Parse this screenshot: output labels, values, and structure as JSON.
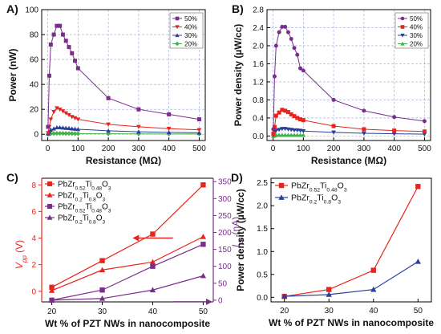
{
  "colors": {
    "purple": "#7a2e8c",
    "red": "#e8251c",
    "blue": "#2b3f9b",
    "green": "#40b24a",
    "grid": "#9aa5d8"
  },
  "chart_data": [
    {
      "id": "A",
      "panel_label": "A)",
      "type": "line",
      "xlabel": "Resistance (MΩ)",
      "ylabel": "Power (nW)",
      "xlim": [
        -20,
        520
      ],
      "ylim": [
        -5,
        100
      ],
      "xticks": [
        "0",
        "100",
        "200",
        "300",
        "400",
        "500"
      ],
      "yticks": [
        "0",
        "20",
        "40",
        "60",
        "80",
        "100"
      ],
      "grid": true,
      "legend_position": "top-right",
      "series": [
        {
          "name": "50%",
          "color": "#7a2e8c",
          "marker": "square",
          "x": [
            1,
            5,
            10,
            20,
            30,
            40,
            50,
            60,
            70,
            80,
            90,
            100,
            200,
            300,
            400,
            500
          ],
          "y": [
            6,
            47,
            72,
            80,
            87,
            87,
            80,
            75,
            70,
            65,
            59,
            53,
            29,
            20,
            16,
            12
          ]
        },
        {
          "name": "40%",
          "color": "#e8251c",
          "marker": "triangle-down",
          "x": [
            1,
            5,
            10,
            20,
            30,
            40,
            50,
            60,
            70,
            80,
            90,
            100,
            200,
            300,
            400,
            500
          ],
          "y": [
            1,
            6,
            12,
            18,
            21,
            20,
            18.5,
            17,
            15.5,
            14,
            13,
            12,
            8,
            6,
            4.5,
            3.5
          ]
        },
        {
          "name": "30%",
          "color": "#2b3f9b",
          "marker": "triangle-up",
          "x": [
            1,
            5,
            10,
            20,
            30,
            40,
            50,
            60,
            70,
            80,
            90,
            100,
            200,
            300,
            400,
            500
          ],
          "y": [
            0.5,
            2,
            3.5,
            4.5,
            5.5,
            5.5,
            5.2,
            5,
            4.8,
            4.5,
            4.3,
            4,
            2.8,
            2,
            1.5,
            1.2
          ]
        },
        {
          "name": "20%",
          "color": "#40b24a",
          "marker": "diamond",
          "x": [
            1,
            5,
            10,
            20,
            30,
            40,
            50,
            60,
            70,
            80,
            90,
            100,
            200,
            300,
            400,
            500
          ],
          "y": [
            0.1,
            0.3,
            0.5,
            0.6,
            0.7,
            0.7,
            0.7,
            0.6,
            0.6,
            0.6,
            0.5,
            0.5,
            0.4,
            0.3,
            0.2,
            0.2
          ]
        }
      ]
    },
    {
      "id": "B",
      "panel_label": "B)",
      "type": "line",
      "xlabel": "Resistance (MΩ)",
      "ylabel": "Power density (µW/cc)",
      "xlim": [
        -20,
        520
      ],
      "ylim": [
        -0.1,
        2.8
      ],
      "xticks": [
        "0",
        "100",
        "200",
        "300",
        "400",
        "500"
      ],
      "yticks": [
        "0.0",
        "0.4",
        "0.8",
        "1.2",
        "1.6",
        "2.0",
        "2.4",
        "2.8"
      ],
      "grid": true,
      "legend_position": "top-right",
      "series": [
        {
          "name": "50%",
          "color": "#7a2e8c",
          "marker": "circle",
          "x": [
            1,
            5,
            10,
            20,
            30,
            40,
            50,
            60,
            70,
            80,
            90,
            100,
            200,
            300,
            400,
            500
          ],
          "y": [
            0.15,
            1.32,
            2.0,
            2.3,
            2.42,
            2.42,
            2.3,
            2.15,
            1.95,
            1.8,
            1.5,
            1.45,
            0.8,
            0.56,
            0.42,
            0.33
          ]
        },
        {
          "name": "40%",
          "color": "#e8251c",
          "marker": "square",
          "x": [
            1,
            5,
            10,
            20,
            30,
            40,
            50,
            60,
            70,
            80,
            90,
            100,
            200,
            300,
            400,
            500
          ],
          "y": [
            0.05,
            0.2,
            0.45,
            0.52,
            0.58,
            0.56,
            0.53,
            0.48,
            0.44,
            0.4,
            0.37,
            0.35,
            0.22,
            0.15,
            0.12,
            0.1
          ]
        },
        {
          "name": "30%",
          "color": "#2b3f9b",
          "marker": "triangle-down",
          "x": [
            1,
            5,
            10,
            20,
            30,
            40,
            50,
            60,
            70,
            80,
            90,
            100,
            200,
            300,
            400,
            500
          ],
          "y": [
            0.02,
            0.08,
            0.12,
            0.14,
            0.16,
            0.16,
            0.15,
            0.14,
            0.13,
            0.13,
            0.12,
            0.11,
            0.08,
            0.06,
            0.05,
            0.04
          ]
        },
        {
          "name": "20%",
          "color": "#40b24a",
          "marker": "triangle-up",
          "x": [
            1,
            5,
            10,
            20,
            30,
            40,
            50,
            60,
            70,
            80,
            90,
            100
          ],
          "y": [
            0.0,
            0.01,
            0.02,
            0.02,
            0.02,
            0.02,
            0.02,
            0.02,
            0.02,
            0.02,
            0.02,
            0.02
          ]
        }
      ]
    },
    {
      "id": "C",
      "panel_label": "C)",
      "type": "line",
      "xlabel": "Wt % of PZT NWs in nanocomposite",
      "ylabel_left": "V_pp (V)",
      "ylabel_right": "I_pp (nA)",
      "x": [
        20,
        30,
        40,
        50
      ],
      "xlim": [
        18,
        52
      ],
      "xticks": [
        "20",
        "30",
        "40",
        "50"
      ],
      "ylim_left": [
        -0.8,
        8.5
      ],
      "yticks_left": [
        "0",
        "2",
        "4",
        "6",
        "8"
      ],
      "ylim_right": [
        -5,
        360
      ],
      "yticks_right": [
        "0",
        "50",
        "100",
        "150",
        "200",
        "250",
        "300",
        "350"
      ],
      "grid": false,
      "legend_position": "top-left",
      "series": [
        {
          "name_base": "PbZr",
          "name_sub1": "0.52",
          "name_mid": "Ti",
          "name_sub2": "0.48",
          "name_end": "O",
          "name_sub3": "3",
          "axis": "left",
          "color": "#e8251c",
          "marker": "square",
          "y": [
            0.3,
            2.3,
            4.3,
            8.0
          ]
        },
        {
          "name_base": "PbZr",
          "name_sub1": "0.2",
          "name_mid": "Ti",
          "name_sub2": "0.8",
          "name_end": "O",
          "name_sub3": "3",
          "axis": "left",
          "color": "#e8251c",
          "marker": "triangle-up",
          "y": [
            0.05,
            1.6,
            2.2,
            4.1
          ]
        },
        {
          "name_base": "PbZr",
          "name_sub1": "0.52",
          "name_mid": "Ti",
          "name_sub2": "0.48",
          "name_end": "O",
          "name_sub3": "3",
          "axis": "right",
          "color": "#7a2e8c",
          "marker": "square",
          "y": [
            0,
            30,
            100,
            165
          ]
        },
        {
          "name_base": "PbZr",
          "name_sub1": "0.2",
          "name_mid": "Ti",
          "name_sub2": "0.8",
          "name_end": "O",
          "name_sub3": "3",
          "axis": "right",
          "color": "#7a2e8c",
          "marker": "triangle-up",
          "y": [
            0,
            5,
            30,
            72
          ]
        }
      ],
      "annotations": [
        {
          "type": "arrow-left",
          "color": "#e8251c",
          "x": [
            36,
            44
          ],
          "y_left": 4.0
        },
        {
          "type": "arrow-right",
          "color": "#7a2e8c",
          "x": [
            44,
            52
          ],
          "y_right": 0
        }
      ]
    },
    {
      "id": "D",
      "panel_label": "D)",
      "type": "line",
      "xlabel": "Wt % of PZT NWs in nanocomposite",
      "ylabel": "Power density (µW/cc)",
      "x": [
        20,
        30,
        40,
        50
      ],
      "xlim": [
        17,
        53
      ],
      "xticks": [
        "20",
        "30",
        "40",
        "50"
      ],
      "ylim": [
        -0.1,
        2.6
      ],
      "yticks": [
        "0.0",
        "0.5",
        "1.0",
        "1.5",
        "2.0",
        "2.5"
      ],
      "grid": false,
      "legend_position": "top-left",
      "series": [
        {
          "name_base": "PbZr",
          "name_sub1": "0.52",
          "name_mid": "Ti",
          "name_sub2": "0.48",
          "name_end": "O",
          "name_sub3": "3",
          "color": "#e8251c",
          "marker": "square",
          "y": [
            0.02,
            0.17,
            0.59,
            2.42
          ]
        },
        {
          "name_base": "PbZr",
          "name_sub1": "0.2",
          "name_mid": "Ti",
          "name_sub2": "0.8",
          "name_end": "O",
          "name_sub3": "3",
          "color": "#2b3f9b",
          "marker": "triangle-up",
          "y": [
            0.02,
            0.06,
            0.17,
            0.78
          ]
        }
      ]
    }
  ]
}
